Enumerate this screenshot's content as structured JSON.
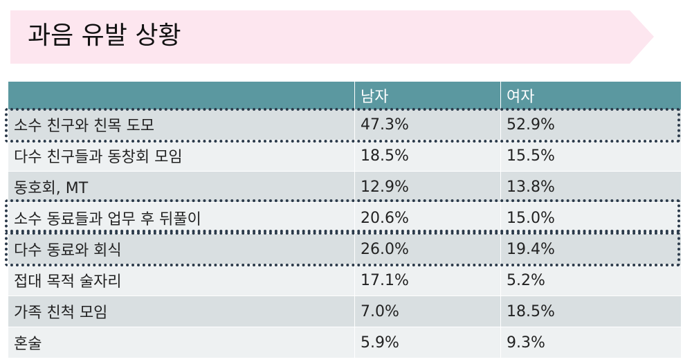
{
  "header": {
    "title": "과음 유발 상황"
  },
  "table": {
    "columns": [
      "남자",
      "여자"
    ],
    "rows": [
      [
        "소수 친구와 친목 도모",
        "47.3%",
        "52.9%"
      ],
      [
        "다수 친구들과 동창회 모임",
        "18.5%",
        "15.5%"
      ],
      [
        "동호회, MT",
        "12.9%",
        "13.8%"
      ],
      [
        "소수 동료들과 업무 후 뒤풀이",
        "20.6%",
        "15.0%"
      ],
      [
        "다수 동료와 회식",
        "26.0%",
        "19.4%"
      ],
      [
        "접대 목적 술자리",
        "17.1%",
        "5.2%"
      ],
      [
        "가족 친척 모임",
        "7.0%",
        "18.5%"
      ],
      [
        "혼술",
        "5.9%",
        "9.3%"
      ]
    ]
  }
}
